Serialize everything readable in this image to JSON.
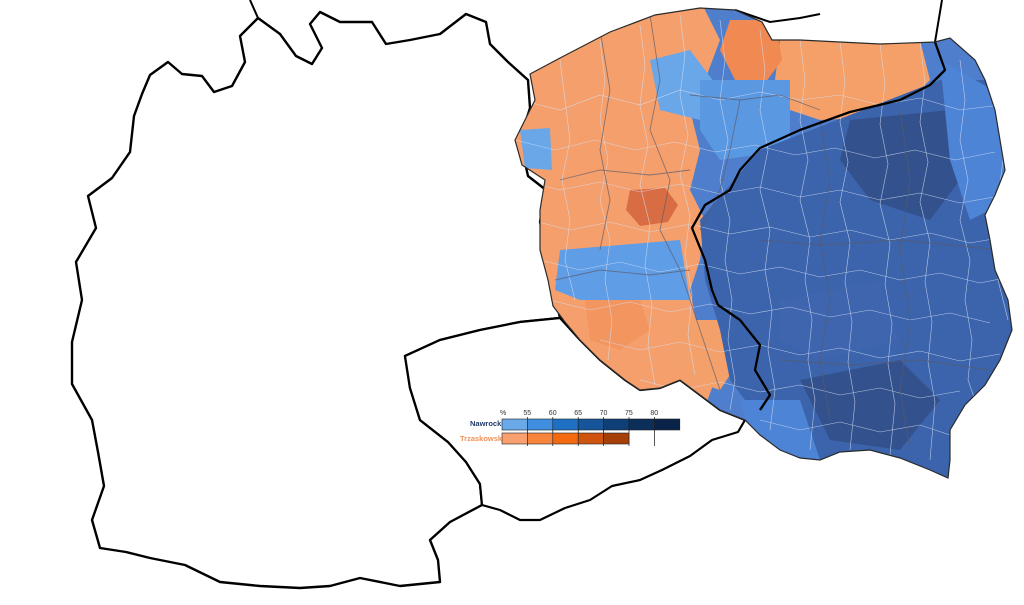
{
  "legend": {
    "unit": "%",
    "ticks": [
      "55",
      "60",
      "65",
      "70",
      "75",
      "80"
    ],
    "rows": [
      {
        "name": "Nawrocki",
        "label_color": "#1f3a6b",
        "colors": [
          "#6aa9e9",
          "#3f8edf",
          "#1f6fc4",
          "#17559b",
          "#0f3f77",
          "#0c2f5a",
          "#082248"
        ]
      },
      {
        "name": "Trzaskowski",
        "label_color": "#f0925a",
        "colors": [
          "#f8a070",
          "#f8853e",
          "#f36a10",
          "#cf5410",
          "#a64009"
        ]
      }
    ]
  },
  "colors": {
    "trzaskowski_light": "#f6a36f",
    "trzaskowski_mid": "#f08c55",
    "trzaskowski_dark": "#d8663c",
    "nawrocki_light": "#5e9ee6",
    "nawrocki_mid": "#4a7fd1",
    "nawrocki_dark": "#3a5fa4",
    "nawrocki_darkest": "#2f4a80",
    "border": "#111111",
    "internal_border": "#b9c9ea"
  }
}
